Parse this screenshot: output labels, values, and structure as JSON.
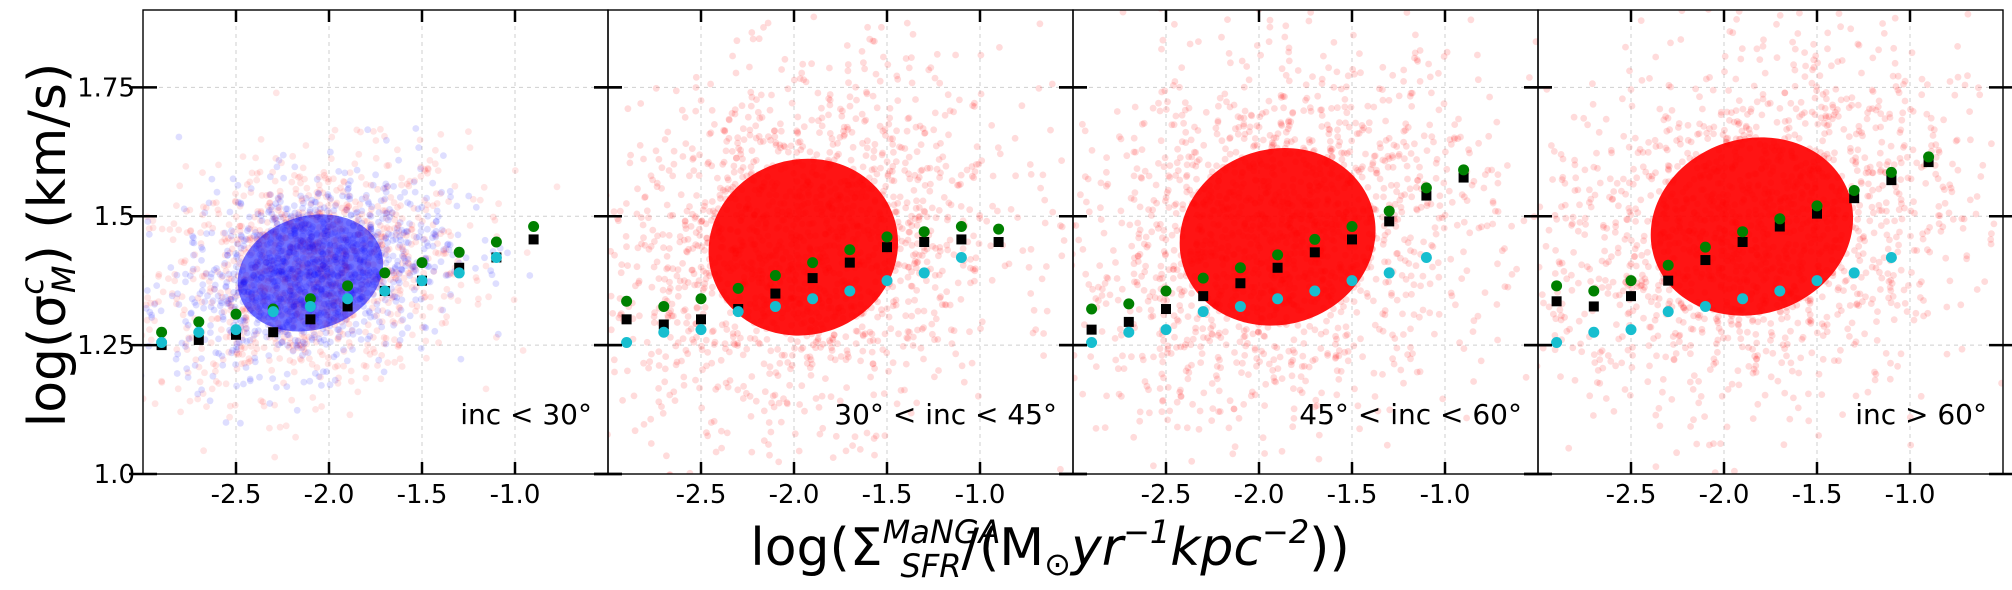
{
  "chart_data": {
    "type": "scatter",
    "xlabel_parts": {
      "pre": "log(Σ",
      "sup": "MaNGA",
      "sub": "SFR",
      "mid": "/(M",
      "sun": "⊙",
      "yr": "yr",
      "yr_exp": "−1",
      "kpc": "kpc",
      "kpc_exp": "−2",
      "post": "))"
    },
    "ylabel_parts": {
      "pre": "log(σ",
      "sup": "c",
      "sub": "M",
      "post": ") (km/s)"
    },
    "xlim": [
      -3.0,
      -0.5
    ],
    "ylim": [
      1.0,
      1.9
    ],
    "xticks": [
      -2.5,
      -2.0,
      -1.5,
      -1.0
    ],
    "xtick_labels": [
      "-2.5",
      "-2.0",
      "-1.5",
      "-1.0"
    ],
    "yticks": [
      1.0,
      1.25,
      1.5,
      1.75
    ],
    "ytick_labels": [
      "1.0",
      "1.25",
      "1.5",
      "1.75"
    ],
    "grid": true,
    "colors": {
      "scatter_red": "#ff0000",
      "scatter_blue": "#0000ff",
      "binned_black": "#000000",
      "binned_green": "#008000",
      "binned_cyan": "#17becf"
    },
    "panels": [
      {
        "label": "inc < 30°",
        "scatter_series": [
          {
            "name": "spaxels (red)",
            "color": "#ff0000"
          },
          {
            "name": "spaxels (blue)",
            "color": "#0000ff"
          }
        ],
        "series": [
          {
            "name": "black median",
            "marker": "square",
            "x": [
              -2.9,
              -2.7,
              -2.5,
              -2.3,
              -2.1,
              -1.9,
              -1.7,
              -1.5,
              -1.3,
              -1.1,
              -0.9
            ],
            "y": [
              1.25,
              1.26,
              1.27,
              1.275,
              1.3,
              1.325,
              1.355,
              1.375,
              1.4,
              1.42,
              1.455
            ]
          },
          {
            "name": "green median",
            "marker": "circle",
            "x": [
              -2.9,
              -2.7,
              -2.5,
              -2.3,
              -2.1,
              -1.9,
              -1.7,
              -1.5,
              -1.3,
              -1.1,
              -0.9
            ],
            "y": [
              1.275,
              1.295,
              1.31,
              1.32,
              1.34,
              1.365,
              1.39,
              1.41,
              1.43,
              1.45,
              1.48
            ]
          },
          {
            "name": "cyan median",
            "marker": "circle",
            "x": [
              -2.9,
              -2.7,
              -2.5,
              -2.3,
              -2.1,
              -1.9,
              -1.7,
              -1.5,
              -1.3,
              -1.1
            ],
            "y": [
              1.255,
              1.275,
              1.28,
              1.315,
              1.325,
              1.34,
              1.355,
              1.375,
              1.39,
              1.42
            ]
          }
        ]
      },
      {
        "label": "30° < inc < 45°",
        "scatter_series": [
          {
            "name": "spaxels (red)",
            "color": "#ff0000"
          }
        ],
        "series": [
          {
            "name": "black median",
            "marker": "square",
            "x": [
              -2.9,
              -2.7,
              -2.5,
              -2.3,
              -2.1,
              -1.9,
              -1.7,
              -1.5,
              -1.3,
              -1.1,
              -0.9
            ],
            "y": [
              1.3,
              1.29,
              1.3,
              1.32,
              1.35,
              1.38,
              1.41,
              1.44,
              1.45,
              1.455,
              1.45
            ]
          },
          {
            "name": "green median",
            "marker": "circle",
            "x": [
              -2.9,
              -2.7,
              -2.5,
              -2.3,
              -2.1,
              -1.9,
              -1.7,
              -1.5,
              -1.3,
              -1.1,
              -0.9
            ],
            "y": [
              1.335,
              1.325,
              1.34,
              1.36,
              1.385,
              1.41,
              1.435,
              1.46,
              1.47,
              1.48,
              1.475
            ]
          },
          {
            "name": "cyan median",
            "marker": "circle",
            "x": [
              -2.9,
              -2.7,
              -2.5,
              -2.3,
              -2.1,
              -1.9,
              -1.7,
              -1.5,
              -1.3,
              -1.1
            ],
            "y": [
              1.255,
              1.275,
              1.28,
              1.315,
              1.325,
              1.34,
              1.355,
              1.375,
              1.39,
              1.42
            ]
          }
        ]
      },
      {
        "label": "45° < inc < 60°",
        "scatter_series": [
          {
            "name": "spaxels (red)",
            "color": "#ff0000"
          }
        ],
        "series": [
          {
            "name": "black median",
            "marker": "square",
            "x": [
              -2.9,
              -2.7,
              -2.5,
              -2.3,
              -2.1,
              -1.9,
              -1.7,
              -1.5,
              -1.3,
              -1.1,
              -0.9
            ],
            "y": [
              1.28,
              1.295,
              1.32,
              1.345,
              1.37,
              1.4,
              1.43,
              1.455,
              1.49,
              1.54,
              1.575
            ]
          },
          {
            "name": "green median",
            "marker": "circle",
            "x": [
              -2.9,
              -2.7,
              -2.5,
              -2.3,
              -2.1,
              -1.9,
              -1.7,
              -1.5,
              -1.3,
              -1.1,
              -0.9
            ],
            "y": [
              1.32,
              1.33,
              1.355,
              1.38,
              1.4,
              1.425,
              1.455,
              1.48,
              1.51,
              1.555,
              1.59
            ]
          },
          {
            "name": "cyan median",
            "marker": "circle",
            "x": [
              -2.9,
              -2.7,
              -2.5,
              -2.3,
              -2.1,
              -1.9,
              -1.7,
              -1.5,
              -1.3,
              -1.1
            ],
            "y": [
              1.255,
              1.275,
              1.28,
              1.315,
              1.325,
              1.34,
              1.355,
              1.375,
              1.39,
              1.42
            ]
          }
        ]
      },
      {
        "label": "inc > 60°",
        "scatter_series": [
          {
            "name": "spaxels (red)",
            "color": "#ff0000"
          }
        ],
        "series": [
          {
            "name": "black median",
            "marker": "square",
            "x": [
              -2.9,
              -2.7,
              -2.5,
              -2.3,
              -2.1,
              -1.9,
              -1.7,
              -1.5,
              -1.3,
              -1.1,
              -0.9
            ],
            "y": [
              1.335,
              1.325,
              1.345,
              1.375,
              1.415,
              1.45,
              1.48,
              1.505,
              1.535,
              1.57,
              1.605
            ]
          },
          {
            "name": "green median",
            "marker": "circle",
            "x": [
              -2.9,
              -2.7,
              -2.5,
              -2.3,
              -2.1,
              -1.9,
              -1.7,
              -1.5,
              -1.3,
              -1.1,
              -0.9
            ],
            "y": [
              1.365,
              1.355,
              1.375,
              1.405,
              1.44,
              1.47,
              1.495,
              1.52,
              1.55,
              1.585,
              1.615
            ]
          },
          {
            "name": "cyan median",
            "marker": "circle",
            "x": [
              -2.9,
              -2.7,
              -2.5,
              -2.3,
              -2.1,
              -1.9,
              -1.7,
              -1.5,
              -1.3,
              -1.1
            ],
            "y": [
              1.255,
              1.275,
              1.28,
              1.315,
              1.325,
              1.34,
              1.355,
              1.375,
              1.39,
              1.42
            ]
          }
        ]
      }
    ]
  }
}
